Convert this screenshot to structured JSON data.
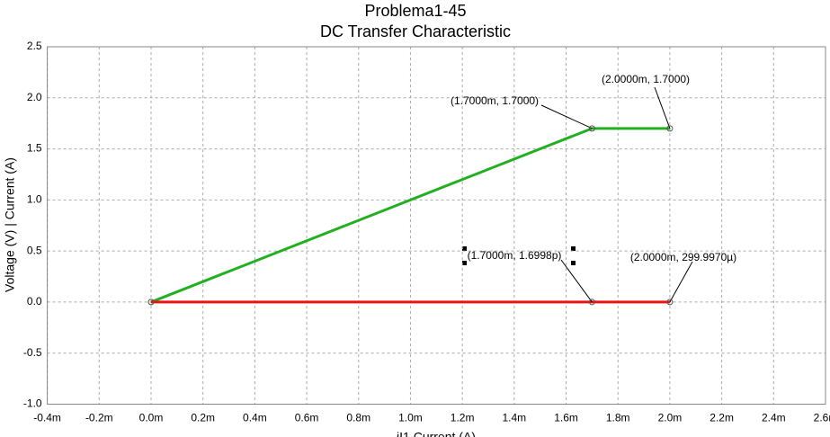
{
  "chart_data": {
    "type": "line",
    "title": "Problema1-45",
    "subtitle": "DC Transfer Characteristic",
    "x_label": "iI1 Current (A)",
    "y_label": "Voltage (V) | Current (A)",
    "xlim": [
      -0.0004,
      0.0026
    ],
    "ylim": [
      -1.0,
      2.5
    ],
    "xticks": [
      {
        "value": -0.0004,
        "label": "-0.4m"
      },
      {
        "value": -0.0002,
        "label": "-0.2m"
      },
      {
        "value": 0,
        "label": "0.0m"
      },
      {
        "value": 0.0002,
        "label": "0.2m"
      },
      {
        "value": 0.0004,
        "label": "0.4m"
      },
      {
        "value": 0.0006,
        "label": "0.6m"
      },
      {
        "value": 0.0008,
        "label": "0.8m"
      },
      {
        "value": 0.001,
        "label": "1.0m"
      },
      {
        "value": 0.0012,
        "label": "1.2m"
      },
      {
        "value": 0.0014,
        "label": "1.4m"
      },
      {
        "value": 0.0016,
        "label": "1.6m"
      },
      {
        "value": 0.0018,
        "label": "1.8m"
      },
      {
        "value": 0.002,
        "label": "2.0m"
      },
      {
        "value": 0.0022,
        "label": "2.2m"
      },
      {
        "value": 0.0024,
        "label": "2.4m"
      },
      {
        "value": 0.0026,
        "label": "2.6m"
      }
    ],
    "yticks": [
      2.5,
      {
        "value": 2.0,
        "label": "2.0"
      },
      1.5,
      {
        "value": 1.0,
        "label": "1.0"
      },
      0.5,
      {
        "value": 0.0,
        "label": "0.0"
      },
      -0.5,
      {
        "value": -1.0,
        "label": "-1.0"
      }
    ],
    "grid": true,
    "series": [
      {
        "color": "#22b022",
        "x": [
          0,
          0.0017,
          0.002
        ],
        "values": [
          0,
          1.7,
          1.7
        ]
      },
      {
        "color": "#ee1111",
        "x": [
          0,
          0.0017,
          0.002
        ],
        "values": [
          0,
          1.6998e-12,
          0.000299997
        ]
      }
    ],
    "annotations": [
      {
        "text": "(1.7000m, 1.7000)"
      },
      {
        "text": "(2.0000m, 1.7000)"
      },
      {
        "text": "(1.7000m, 1.6998p)"
      },
      {
        "text": "(2.0000m, 299.9970µ)"
      }
    ]
  }
}
